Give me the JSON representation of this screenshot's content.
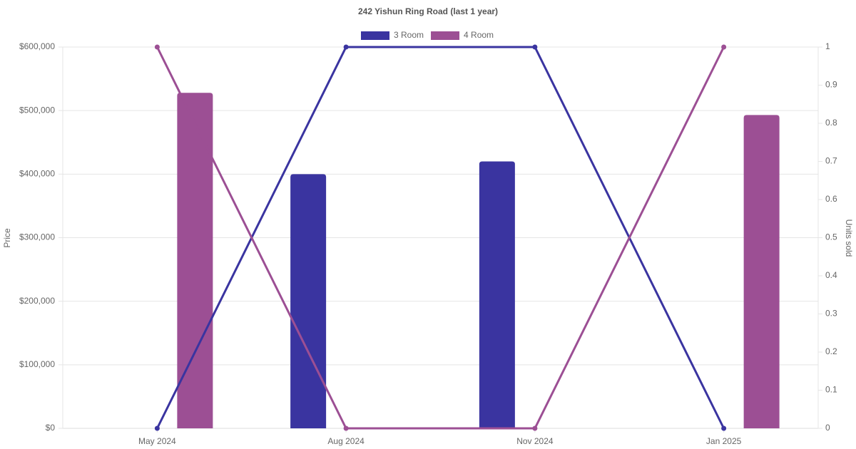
{
  "chart_data": {
    "type": "bar_line",
    "title": "242 Yishun Ring Road (last 1 year)",
    "y_label": "Price",
    "y2_label": "Units sold",
    "categories": [
      "May 2024",
      "Aug 2024",
      "Nov 2024",
      "Jan 2025"
    ],
    "series": [
      {
        "name": "3 Room",
        "color": "#3a34a0",
        "values": [
          null,
          400000,
          420000,
          null
        ],
        "units_sold": [
          0,
          1,
          1,
          0
        ]
      },
      {
        "name": "4 Room",
        "color": "#9c4f94",
        "values": [
          528000,
          null,
          null,
          493000
        ],
        "units_sold": [
          1,
          0,
          0,
          1
        ]
      }
    ],
    "ylim": [
      0,
      600000
    ],
    "yticks": [
      {
        "value": 0,
        "label": "$0"
      },
      {
        "value": 100000,
        "label": "$100,000"
      },
      {
        "value": 200000,
        "label": "$200,000"
      },
      {
        "value": 300000,
        "label": "$300,000"
      },
      {
        "value": 400000,
        "label": "$400,000"
      },
      {
        "value": 500000,
        "label": "$500,000"
      },
      {
        "value": 600000,
        "label": "$600,000"
      }
    ],
    "y2lim": [
      0,
      1
    ],
    "y2ticks": [
      0,
      0.1,
      0.2,
      0.3,
      0.4,
      0.5,
      0.6,
      0.7,
      0.8,
      0.9,
      1
    ],
    "grid": true,
    "legend": "top"
  }
}
